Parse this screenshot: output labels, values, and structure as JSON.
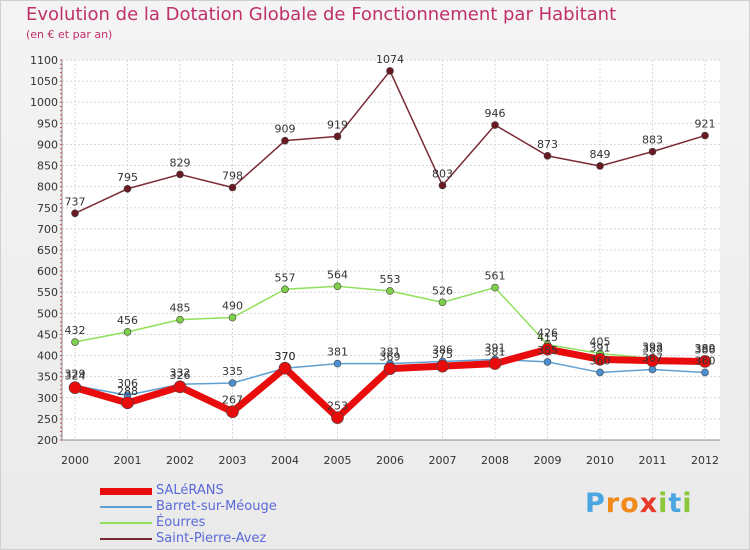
{
  "chart_data": {
    "type": "line",
    "title": "Evolution de la Dotation Globale de Fonctionnement par Habitant",
    "subtitle": "(en € et par an)",
    "xlabel": "",
    "ylabel": "",
    "categories": [
      "2000",
      "2001",
      "2002",
      "2003",
      "2004",
      "2005",
      "2006",
      "2007",
      "2008",
      "2009",
      "2010",
      "2011",
      "2012"
    ],
    "ylim": [
      200,
      1100
    ],
    "yticks": [
      200,
      250,
      300,
      350,
      400,
      450,
      500,
      550,
      600,
      650,
      700,
      750,
      800,
      850,
      900,
      950,
      1000,
      1050,
      1100
    ],
    "grid": true,
    "legend_position": "bottom-left",
    "series": [
      {
        "name": "SALéRANS",
        "color": "#e80c0c",
        "marker_color": "#e80c0c",
        "values": [
          324,
          288,
          326,
          267,
          370,
          253,
          369,
          375,
          381,
          415,
          391,
          388,
          386
        ]
      },
      {
        "name": "Barret-sur-Méouge",
        "color": "#5fa0d2",
        "marker_color": "#4a90d0",
        "values": [
          329,
          306,
          332,
          335,
          370,
          381,
          381,
          386,
          391,
          385,
          360,
          367,
          360
        ]
      },
      {
        "name": "Éourres",
        "color": "#8fe05a",
        "marker_color": "#7ed04a",
        "values": [
          432,
          456,
          485,
          490,
          557,
          564,
          553,
          526,
          561,
          426,
          405,
          393,
          389
        ]
      },
      {
        "name": "Saint-Pierre-Avez",
        "color": "#7a2a35",
        "marker_color": "#6a1a22",
        "values": [
          737,
          795,
          829,
          798,
          909,
          919,
          1074,
          803,
          946,
          873,
          849,
          883,
          921
        ]
      }
    ]
  },
  "brand": {
    "logo_chars": [
      "P",
      "r",
      "o",
      "x",
      "i",
      "t",
      "i"
    ],
    "logo_colors": [
      "#4aa6e0",
      "#f08a1a",
      "#f08a1a",
      "#e83a2a",
      "#8ac83a",
      "#4aa6e0",
      "#8ac83a"
    ]
  }
}
